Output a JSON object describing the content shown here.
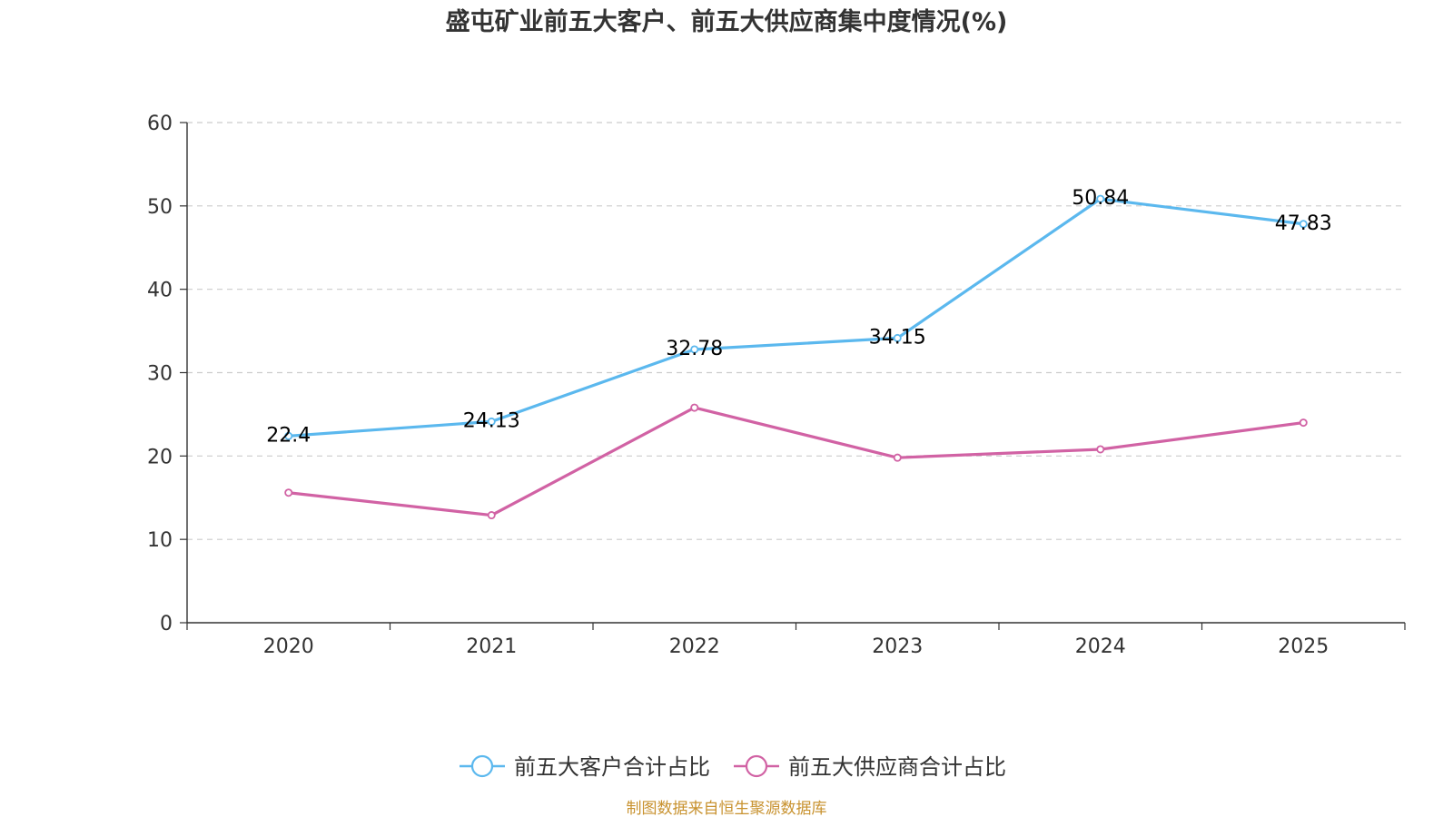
{
  "chart_data": {
    "type": "line",
    "title": "盛屯矿业前五大客户、前五大供应商集中度情况(%)",
    "categories": [
      "2020",
      "2021",
      "2022",
      "2023",
      "2024",
      "2025"
    ],
    "ylim": [
      0,
      60
    ],
    "yticks": [
      "0",
      "10",
      "20",
      "30",
      "40",
      "50",
      "60"
    ],
    "grid": true,
    "legend_position": "bottom",
    "series": [
      {
        "name": "前五大客户合计占比",
        "color": "#5bb8ee",
        "values": [
          22.4,
          24.13,
          32.78,
          34.15,
          50.84,
          47.83
        ],
        "labels": [
          "22.4",
          "24.13",
          "32.78",
          "34.15",
          "50.84",
          "47.83"
        ],
        "show_labels": true
      },
      {
        "name": "前五大供应商合计占比",
        "color": "#d162a4",
        "values": [
          15.6,
          12.9,
          25.8,
          19.8,
          20.8,
          24.0
        ],
        "show_labels": false
      }
    ],
    "source": "制图数据来自恒生聚源数据库",
    "source_color": "#c8922f"
  }
}
